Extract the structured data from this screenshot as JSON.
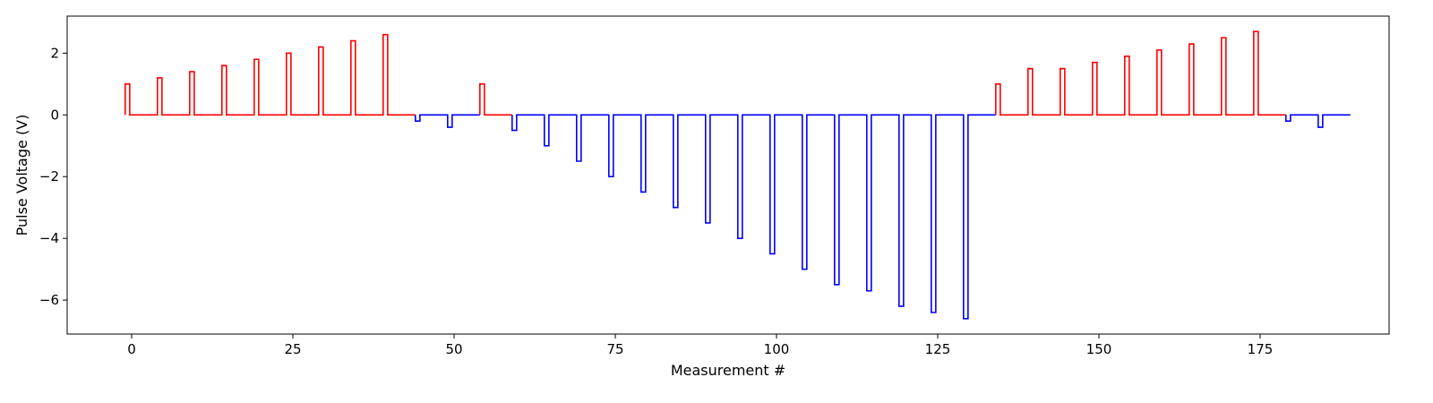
{
  "chart_data": {
    "type": "line",
    "style": "step",
    "title": "",
    "xlabel": "Measurement #",
    "ylabel": "Pulse Voltage (V)",
    "xlim": [
      -10,
      195
    ],
    "ylim": [
      -7.1,
      3.2
    ],
    "x_ticks": [
      0,
      25,
      50,
      75,
      100,
      125,
      150,
      175
    ],
    "y_ticks": [
      -6,
      -4,
      -2,
      0,
      2
    ],
    "grid": false,
    "legend": "none",
    "pulse_width": 0.7,
    "colors": {
      "positive": "#ff0000",
      "negative": "#0000ff"
    },
    "series": [
      {
        "color": "#ff0000",
        "pulses": [
          {
            "x": -1,
            "v": 1.0
          },
          {
            "x": 4,
            "v": 1.2
          },
          {
            "x": 9,
            "v": 1.4
          },
          {
            "x": 14,
            "v": 1.6
          },
          {
            "x": 19,
            "v": 1.8
          },
          {
            "x": 24,
            "v": 2.0
          },
          {
            "x": 29,
            "v": 2.2
          },
          {
            "x": 34,
            "v": 2.4
          },
          {
            "x": 39,
            "v": 2.6
          }
        ],
        "x_range": [
          -1,
          44
        ]
      },
      {
        "color": "#0000ff",
        "pulses": [
          {
            "x": 44,
            "v": -0.2
          },
          {
            "x": 49,
            "v": -0.4
          }
        ],
        "x_range": [
          44,
          54
        ]
      },
      {
        "color": "#ff0000",
        "pulses": [
          {
            "x": 54,
            "v": 1.0
          }
        ],
        "x_range": [
          54,
          59
        ]
      },
      {
        "color": "#0000ff",
        "pulses": [
          {
            "x": 59,
            "v": -0.5
          },
          {
            "x": 64,
            "v": -1.0
          },
          {
            "x": 69,
            "v": -1.5
          },
          {
            "x": 74,
            "v": -2.0
          },
          {
            "x": 79,
            "v": -2.5
          },
          {
            "x": 84,
            "v": -3.0
          },
          {
            "x": 89,
            "v": -3.5
          },
          {
            "x": 94,
            "v": -4.0
          },
          {
            "x": 99,
            "v": -4.5
          },
          {
            "x": 104,
            "v": -5.0
          },
          {
            "x": 109,
            "v": -5.5
          },
          {
            "x": 114,
            "v": -5.7
          },
          {
            "x": 119,
            "v": -6.2
          },
          {
            "x": 124,
            "v": -6.4
          },
          {
            "x": 129,
            "v": -6.6
          }
        ],
        "x_range": [
          59,
          134
        ]
      },
      {
        "color": "#ff0000",
        "pulses": [
          {
            "x": 134,
            "v": 1.0
          },
          {
            "x": 139,
            "v": 1.5
          },
          {
            "x": 144,
            "v": 1.5
          },
          {
            "x": 149,
            "v": 1.7
          },
          {
            "x": 154,
            "v": 1.9
          },
          {
            "x": 159,
            "v": 2.1
          },
          {
            "x": 164,
            "v": 2.3
          },
          {
            "x": 169,
            "v": 2.5
          },
          {
            "x": 174,
            "v": 2.7
          }
        ],
        "x_range": [
          134,
          179
        ]
      },
      {
        "color": "#0000ff",
        "pulses": [
          {
            "x": 179,
            "v": -0.2
          },
          {
            "x": 184,
            "v": -0.4
          }
        ],
        "x_range": [
          179,
          189
        ]
      }
    ]
  }
}
